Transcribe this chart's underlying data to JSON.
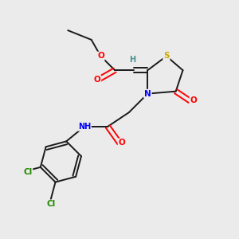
{
  "bg_color": "#ebebeb",
  "atom_colors": {
    "C": "#000000",
    "H": "#4a9090",
    "O": "#ff0000",
    "N": "#0000ff",
    "S": "#ccaa00",
    "Cl": "#228800"
  },
  "bond_color": "#1a1a1a",
  "lw": 1.4
}
